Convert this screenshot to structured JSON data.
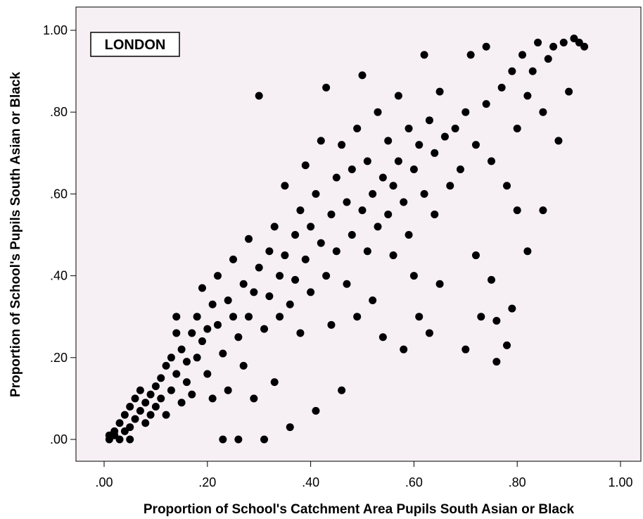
{
  "chart_data": {
    "type": "scatter",
    "annotation": "LONDON",
    "xlabel": "Proportion of School's Catchment Area Pupils South Asian or Black",
    "ylabel": "Proportion of School's Pupils South Asian or Black",
    "xlim": [
      0,
      1
    ],
    "ylim": [
      0,
      1
    ],
    "xticks": [
      ".00",
      ".20",
      ".40",
      ".60",
      ".80",
      "1.00"
    ],
    "yticks": [
      ".00",
      ".20",
      ".40",
      ".60",
      ".80",
      "1.00"
    ],
    "grid": false,
    "colors": {
      "plot_background": "#f6eff4",
      "marker": "#000000"
    },
    "points": [
      [
        0.01,
        0.0
      ],
      [
        0.01,
        0.01
      ],
      [
        0.02,
        0.02
      ],
      [
        0.02,
        0.01
      ],
      [
        0.03,
        0.0
      ],
      [
        0.03,
        0.04
      ],
      [
        0.04,
        0.02
      ],
      [
        0.04,
        0.06
      ],
      [
        0.05,
        0.0
      ],
      [
        0.05,
        0.03
      ],
      [
        0.05,
        0.08
      ],
      [
        0.06,
        0.05
      ],
      [
        0.06,
        0.1
      ],
      [
        0.07,
        0.07
      ],
      [
        0.07,
        0.12
      ],
      [
        0.08,
        0.04
      ],
      [
        0.08,
        0.09
      ],
      [
        0.09,
        0.11
      ],
      [
        0.09,
        0.06
      ],
      [
        0.1,
        0.13
      ],
      [
        0.1,
        0.08
      ],
      [
        0.11,
        0.15
      ],
      [
        0.11,
        0.1
      ],
      [
        0.12,
        0.18
      ],
      [
        0.12,
        0.06
      ],
      [
        0.13,
        0.12
      ],
      [
        0.13,
        0.2
      ],
      [
        0.14,
        0.16
      ],
      [
        0.14,
        0.26
      ],
      [
        0.14,
        0.3
      ],
      [
        0.15,
        0.09
      ],
      [
        0.15,
        0.22
      ],
      [
        0.16,
        0.14
      ],
      [
        0.16,
        0.19
      ],
      [
        0.17,
        0.26
      ],
      [
        0.17,
        0.11
      ],
      [
        0.18,
        0.3
      ],
      [
        0.18,
        0.2
      ],
      [
        0.19,
        0.24
      ],
      [
        0.19,
        0.37
      ],
      [
        0.2,
        0.16
      ],
      [
        0.2,
        0.27
      ],
      [
        0.21,
        0.33
      ],
      [
        0.21,
        0.1
      ],
      [
        0.22,
        0.28
      ],
      [
        0.22,
        0.4
      ],
      [
        0.23,
        0.21
      ],
      [
        0.23,
        0.0
      ],
      [
        0.24,
        0.34
      ],
      [
        0.24,
        0.12
      ],
      [
        0.25,
        0.3
      ],
      [
        0.25,
        0.44
      ],
      [
        0.26,
        0.25
      ],
      [
        0.26,
        0.0
      ],
      [
        0.27,
        0.38
      ],
      [
        0.27,
        0.18
      ],
      [
        0.28,
        0.49
      ],
      [
        0.28,
        0.3
      ],
      [
        0.29,
        0.36
      ],
      [
        0.29,
        0.1
      ],
      [
        0.3,
        0.84
      ],
      [
        0.3,
        0.42
      ],
      [
        0.31,
        0.27
      ],
      [
        0.31,
        0.0
      ],
      [
        0.32,
        0.46
      ],
      [
        0.32,
        0.35
      ],
      [
        0.33,
        0.52
      ],
      [
        0.33,
        0.14
      ],
      [
        0.34,
        0.4
      ],
      [
        0.34,
        0.3
      ],
      [
        0.35,
        0.45
      ],
      [
        0.35,
        0.62
      ],
      [
        0.36,
        0.33
      ],
      [
        0.36,
        0.03
      ],
      [
        0.37,
        0.5
      ],
      [
        0.37,
        0.39
      ],
      [
        0.38,
        0.56
      ],
      [
        0.38,
        0.26
      ],
      [
        0.39,
        0.44
      ],
      [
        0.39,
        0.67
      ],
      [
        0.4,
        0.52
      ],
      [
        0.4,
        0.36
      ],
      [
        0.41,
        0.6
      ],
      [
        0.41,
        0.07
      ],
      [
        0.42,
        0.48
      ],
      [
        0.42,
        0.73
      ],
      [
        0.43,
        0.4
      ],
      [
        0.43,
        0.86
      ],
      [
        0.44,
        0.55
      ],
      [
        0.44,
        0.28
      ],
      [
        0.45,
        0.64
      ],
      [
        0.45,
        0.46
      ],
      [
        0.46,
        0.72
      ],
      [
        0.46,
        0.12
      ],
      [
        0.47,
        0.58
      ],
      [
        0.47,
        0.38
      ],
      [
        0.48,
        0.66
      ],
      [
        0.48,
        0.5
      ],
      [
        0.49,
        0.76
      ],
      [
        0.49,
        0.3
      ],
      [
        0.5,
        0.89
      ],
      [
        0.5,
        0.56
      ],
      [
        0.51,
        0.46
      ],
      [
        0.51,
        0.68
      ],
      [
        0.52,
        0.6
      ],
      [
        0.52,
        0.34
      ],
      [
        0.53,
        0.8
      ],
      [
        0.53,
        0.52
      ],
      [
        0.54,
        0.64
      ],
      [
        0.54,
        0.25
      ],
      [
        0.55,
        0.73
      ],
      [
        0.55,
        0.55
      ],
      [
        0.56,
        0.62
      ],
      [
        0.56,
        0.45
      ],
      [
        0.57,
        0.84
      ],
      [
        0.57,
        0.68
      ],
      [
        0.58,
        0.58
      ],
      [
        0.58,
        0.22
      ],
      [
        0.59,
        0.76
      ],
      [
        0.59,
        0.5
      ],
      [
        0.6,
        0.66
      ],
      [
        0.6,
        0.4
      ],
      [
        0.61,
        0.72
      ],
      [
        0.61,
        0.3
      ],
      [
        0.62,
        0.94
      ],
      [
        0.62,
        0.6
      ],
      [
        0.63,
        0.78
      ],
      [
        0.63,
        0.26
      ],
      [
        0.64,
        0.7
      ],
      [
        0.64,
        0.55
      ],
      [
        0.65,
        0.85
      ],
      [
        0.65,
        0.38
      ],
      [
        0.66,
        0.74
      ],
      [
        0.67,
        0.62
      ],
      [
        0.68,
        0.76
      ],
      [
        0.69,
        0.66
      ],
      [
        0.7,
        0.22
      ],
      [
        0.7,
        0.8
      ],
      [
        0.71,
        0.94
      ],
      [
        0.72,
        0.72
      ],
      [
        0.72,
        0.45
      ],
      [
        0.73,
        0.3
      ],
      [
        0.74,
        0.96
      ],
      [
        0.74,
        0.82
      ],
      [
        0.75,
        0.39
      ],
      [
        0.75,
        0.68
      ],
      [
        0.76,
        0.29
      ],
      [
        0.76,
        0.19
      ],
      [
        0.77,
        0.86
      ],
      [
        0.78,
        0.23
      ],
      [
        0.78,
        0.62
      ],
      [
        0.79,
        0.9
      ],
      [
        0.79,
        0.32
      ],
      [
        0.8,
        0.56
      ],
      [
        0.8,
        0.76
      ],
      [
        0.81,
        0.94
      ],
      [
        0.82,
        0.46
      ],
      [
        0.82,
        0.84
      ],
      [
        0.83,
        0.9
      ],
      [
        0.84,
        0.97
      ],
      [
        0.85,
        0.56
      ],
      [
        0.85,
        0.8
      ],
      [
        0.86,
        0.93
      ],
      [
        0.87,
        0.96
      ],
      [
        0.88,
        0.73
      ],
      [
        0.89,
        0.97
      ],
      [
        0.9,
        0.85
      ],
      [
        0.91,
        0.98
      ],
      [
        0.92,
        0.97
      ],
      [
        0.93,
        0.96
      ]
    ]
  }
}
